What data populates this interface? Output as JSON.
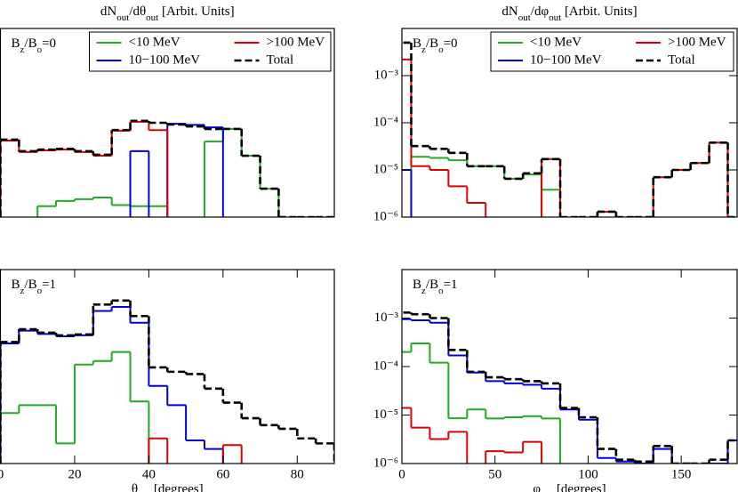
{
  "chart_data": [
    {
      "type": "histogram",
      "yscale": "log",
      "legend": true,
      "title": [
        "dN",
        "out",
        "/dθ",
        "out",
        " [Arbit. Units]"
      ],
      "annotation": [
        "B",
        "z",
        "/B",
        "o",
        "=0"
      ],
      "xlim": [
        0,
        90
      ],
      "ylim": [
        1e-06,
        0.01
      ],
      "bins": [
        0,
        5,
        10,
        15,
        20,
        25,
        30,
        35,
        40,
        45,
        50,
        55,
        60,
        65,
        70,
        75,
        80,
        85,
        90
      ],
      "series": [
        {
          "name": "<10 MeV",
          "color": "#22aa22",
          "values": [
            null,
            null,
            1.7e-06,
            2.2e-06,
            2.4e-06,
            2.6e-06,
            1.8e-06,
            1.7e-06,
            1.7e-06,
            null,
            null,
            4e-05,
            7.4e-05,
            2e-05,
            4e-06,
            null,
            null,
            null
          ]
        },
        {
          "name": "10−100 MeV",
          "color": "#0000dd",
          "values": [
            null,
            null,
            null,
            null,
            null,
            null,
            null,
            2.5e-05,
            null,
            9.5e-05,
            9e-05,
            8e-05,
            null,
            null,
            null,
            null,
            null,
            null
          ]
        },
        {
          "name": ">100 MeV",
          "color": "#dd0000",
          "values": [
            4.2e-05,
            2.4e-05,
            2.6e-05,
            2.7e-05,
            2.4e-05,
            2e-05,
            6.8e-05,
            0.000105,
            7e-05,
            null,
            null,
            null,
            null,
            null,
            null,
            null,
            null,
            null
          ]
        },
        {
          "name": "Total",
          "color": "#000000",
          "dashed": true,
          "values": [
            4.4e-05,
            2.5e-05,
            2.7e-05,
            2.8e-05,
            2.5e-05,
            2.1e-05,
            7e-05,
            0.00011,
            0.0001,
            9.2e-05,
            8.4e-05,
            7.4e-05,
            7.4e-05,
            2e-05,
            4e-06,
            1e-06,
            1e-06,
            1e-06
          ]
        }
      ]
    },
    {
      "type": "histogram",
      "yscale": "log",
      "legend": true,
      "title": [
        "dN",
        "out",
        "/dφ",
        "out",
        " [Arbit. Units]"
      ],
      "annotation": [
        "B",
        "z",
        "/B",
        "o",
        "=0"
      ],
      "xlim": [
        0,
        180
      ],
      "ylim": [
        1e-06,
        0.01
      ],
      "yticks": [
        {
          "value": 1e-06,
          "label": "10⁻⁶"
        },
        {
          "value": 1e-05,
          "label": "10⁻⁵"
        },
        {
          "value": 0.0001,
          "label": "10⁻⁴"
        },
        {
          "value": 0.001,
          "label": "10⁻³"
        }
      ],
      "bins": [
        -5,
        5,
        15,
        25,
        35,
        45,
        55,
        65,
        75,
        85,
        95,
        105,
        115,
        125,
        135,
        145,
        155,
        165,
        175,
        185
      ],
      "series": [
        {
          "name": "<10 MeV",
          "color": "#22aa22",
          "values": [
            null,
            1.9e-05,
            1.8e-05,
            1.6e-05,
            1.2e-05,
            1.2e-05,
            6.5e-06,
            8e-06,
            3.8e-06,
            null,
            null,
            null,
            null,
            null,
            null,
            null,
            null,
            null,
            null
          ]
        },
        {
          "name": "10−100 MeV",
          "color": "#0000dd",
          "values": [
            1e-05,
            null,
            null,
            null,
            null,
            null,
            null,
            null,
            null,
            null,
            null,
            null,
            null,
            null,
            null,
            null,
            null,
            null,
            null
          ]
        },
        {
          "name": ">100 MeV",
          "color": "#dd0000",
          "values": [
            0.0022,
            1.2e-05,
            1e-05,
            4.5e-06,
            2e-06,
            null,
            null,
            null,
            1.7e-05,
            null,
            null,
            1.3e-06,
            null,
            null,
            7e-06,
            1e-05,
            1.4e-05,
            3.8e-05,
            null
          ]
        },
        {
          "name": "Total",
          "color": "#000000",
          "dashed": true,
          "values": [
            0.005,
            3.2e-05,
            2.8e-05,
            2.3e-05,
            1.2e-05,
            1.2e-05,
            6.5e-06,
            8.5e-06,
            1.7e-05,
            1e-06,
            1e-06,
            1.3e-06,
            1e-06,
            1e-06,
            7e-06,
            1e-05,
            1.4e-05,
            3.8e-05,
            1e-06
          ]
        }
      ]
    },
    {
      "type": "histogram",
      "yscale": "log",
      "annotation": [
        "B",
        "z",
        "/B",
        "o",
        "=1"
      ],
      "xlabel": [
        "θ",
        "out",
        " [degrees]"
      ],
      "xlim": [
        0,
        90
      ],
      "ylim": [
        1e-06,
        0.01
      ],
      "xticks": [
        0,
        20,
        40,
        60,
        80
      ],
      "bins": [
        0,
        5,
        10,
        15,
        20,
        25,
        30,
        35,
        40,
        45,
        50,
        55,
        60,
        65,
        70,
        75,
        80,
        85,
        90
      ],
      "series": [
        {
          "name": "<10 MeV",
          "color": "#22aa22",
          "values": [
            1.1e-05,
            1.6e-05,
            1.6e-05,
            2.6e-06,
            0.00011,
            0.00013,
            0.0002,
            1.9e-05,
            null,
            null,
            null,
            null,
            null,
            null,
            null,
            null,
            null,
            null
          ]
        },
        {
          "name": "10−100 MeV",
          "color": "#0000dd",
          "values": [
            0.0003,
            0.00055,
            0.00047,
            0.00042,
            0.00044,
            0.0014,
            0.0017,
            0.0008,
            4e-05,
            1.6e-05,
            3e-06,
            2e-06,
            null,
            null,
            null,
            null,
            null,
            null
          ]
        },
        {
          "name": ">100 MeV",
          "color": "#dd0000",
          "values": [
            null,
            null,
            null,
            null,
            null,
            null,
            null,
            null,
            3.3e-06,
            null,
            null,
            null,
            2.4e-06,
            null,
            null,
            null,
            null,
            null
          ]
        },
        {
          "name": "Total",
          "color": "#000000",
          "dashed": true,
          "values": [
            0.00032,
            0.00059,
            0.0005,
            0.00044,
            0.00046,
            0.0019,
            0.0023,
            0.0011,
            9.6e-05,
            7.8e-05,
            7e-05,
            3.5e-05,
            1.8e-05,
            8.6e-06,
            6.2e-06,
            5.2e-06,
            3.3e-06,
            2.6e-06
          ]
        }
      ]
    },
    {
      "type": "histogram",
      "yscale": "log",
      "annotation": [
        "B",
        "z",
        "/B",
        "o",
        "=1"
      ],
      "xlabel": [
        "φ",
        "out",
        " [degrees]"
      ],
      "xlim": [
        0,
        180
      ],
      "ylim": [
        1e-06,
        0.01
      ],
      "xticks": [
        0,
        50,
        100,
        150
      ],
      "yticks": [
        {
          "value": 1e-06,
          "label": "10⁻⁶"
        },
        {
          "value": 1e-05,
          "label": "10⁻⁵"
        },
        {
          "value": 0.0001,
          "label": "10⁻⁴"
        },
        {
          "value": 0.001,
          "label": "10⁻³"
        }
      ],
      "bins": [
        -5,
        5,
        15,
        25,
        35,
        45,
        55,
        65,
        75,
        85,
        95,
        105,
        115,
        125,
        135,
        145,
        155,
        165,
        175,
        185
      ],
      "series": [
        {
          "name": "<10 MeV",
          "color": "#22aa22",
          "values": [
            0.0002,
            0.0003,
            0.00012,
            8.6e-06,
            1.3e-05,
            8.5e-06,
            9e-06,
            9.5e-06,
            8.5e-06,
            null,
            null,
            null,
            null,
            null,
            null,
            null,
            null,
            null,
            null
          ]
        },
        {
          "name": "10−100 MeV",
          "color": "#0000dd",
          "values": [
            0.00095,
            0.0009,
            0.0008,
            0.00017,
            7.5e-05,
            5e-05,
            4.5e-05,
            4.2e-05,
            3.5e-05,
            1.3e-05,
            8e-06,
            1.3e-06,
            1.1e-06,
            1e-06,
            2e-06,
            null,
            null,
            1e-06,
            3e-06
          ]
        },
        {
          "name": ">100 MeV",
          "color": "#dd0000",
          "values": [
            1.4e-05,
            5.5e-06,
            3.2e-06,
            4.5e-06,
            null,
            1.8e-06,
            1.7e-06,
            2.8e-06,
            null,
            null,
            null,
            null,
            null,
            null,
            null,
            null,
            null,
            null,
            null
          ]
        },
        {
          "name": "Total",
          "color": "#000000",
          "dashed": true,
          "values": [
            0.0013,
            0.0012,
            0.001,
            0.00022,
            7.8e-05,
            6e-05,
            5.5e-05,
            5e-05,
            4.5e-05,
            1.4e-05,
            9e-06,
            2e-06,
            1.2e-06,
            1.1e-06,
            2.3e-06,
            1e-06,
            1e-06,
            1.2e-06,
            3e-06
          ]
        }
      ]
    }
  ]
}
